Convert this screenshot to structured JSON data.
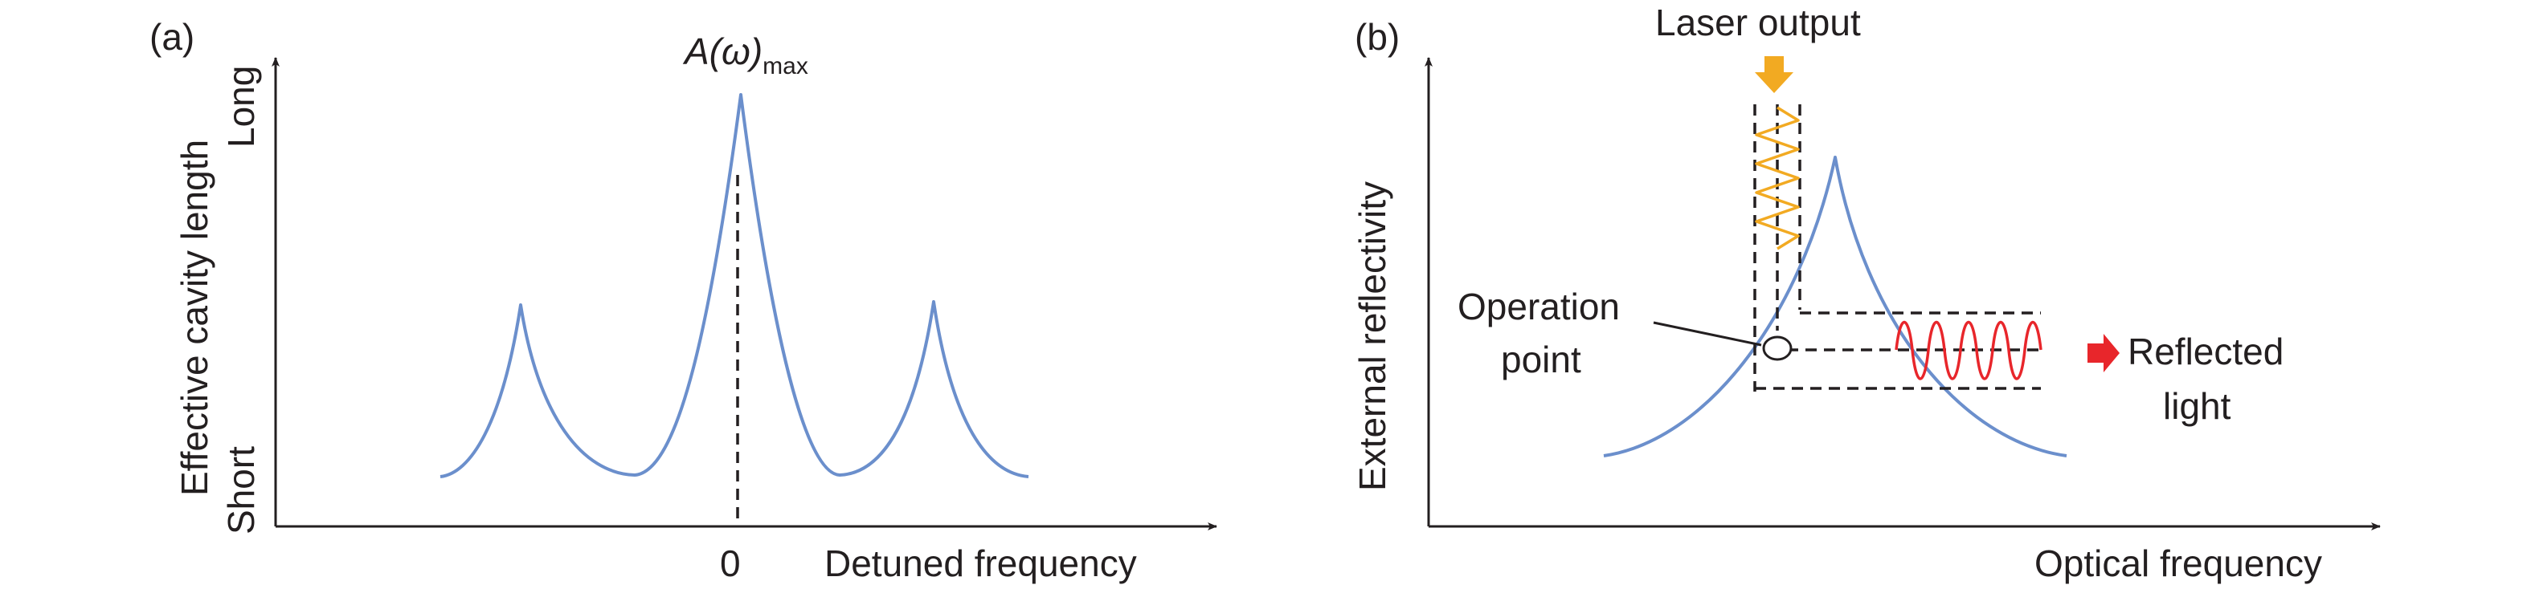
{
  "colors": {
    "curve": "#6b8fcc",
    "axis": "#231f20",
    "laser_arrow": "#f2aa22",
    "laser_wave": "#f2aa22",
    "reflected_arrow": "#e8262b",
    "reflected_wave": "#e8262b"
  },
  "panel_a": {
    "label": "(a)",
    "peak_label_main": "A(ω)",
    "peak_label_sub": "max",
    "y_axis_label": "Effective cavity length",
    "y_tick_long": "Long",
    "y_tick_short": "Short",
    "x_tick_zero": "0",
    "x_axis_label": "Detuned frequency"
  },
  "panel_b": {
    "label": "(b)",
    "laser_output_label": "Laser output",
    "operation_point_line1": "Operation",
    "operation_point_line2": "point",
    "reflected_line1": "Reflected",
    "reflected_line2": "light",
    "y_axis_label": "External reflectivity",
    "x_axis_label": "Optical frequency"
  }
}
